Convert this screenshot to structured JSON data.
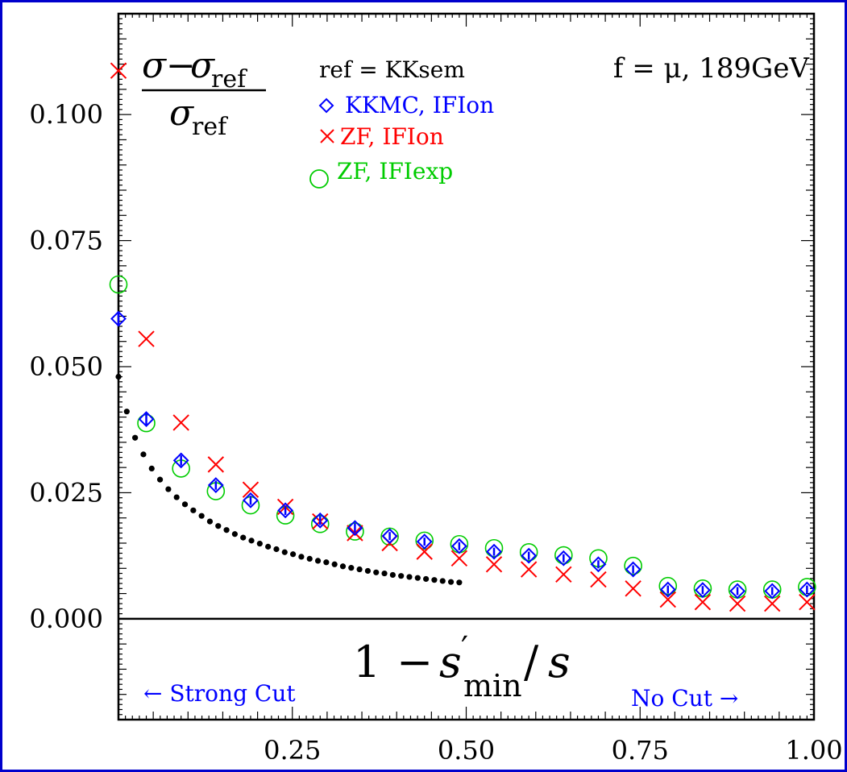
{
  "colors": {
    "frame": "#0000cc",
    "axes": "#000000",
    "kkmc": "#0000ff",
    "zf_on": "#ff0000",
    "zf_exp": "#00cc00",
    "curve": "#000000",
    "cut_labels": "#0000ff"
  },
  "ylabel": {
    "numerator_a": "σ",
    "numerator_minus": "−",
    "numerator_b": "σ",
    "numerator_sub": "ref",
    "denominator": "σ",
    "denominator_sub": "ref"
  },
  "xlabel": {
    "one": "1",
    "minus": "−",
    "s": "s",
    "prime": "′",
    "sub": "min",
    "over": "/",
    "s2": "s"
  },
  "annotations": {
    "top_right": "f = μ, 189GeV",
    "strong_cut": "← Strong Cut",
    "no_cut": "No Cut →"
  },
  "legend": {
    "title": "ref = KKsem",
    "entries": [
      "KKMC, IFIon",
      "ZF, IFIon",
      "ZF, IFIexp"
    ]
  },
  "chart_data": {
    "type": "scatter",
    "title": "",
    "xlim": [
      0,
      1.0
    ],
    "ylim": [
      -0.02,
      0.12
    ],
    "x_ticks": [
      "0.25",
      "0.50",
      "0.75",
      "1.00"
    ],
    "x_tick_values": [
      0.25,
      0.5,
      0.75,
      1.0
    ],
    "y_ticks": [
      "0.000",
      "0.025",
      "0.050",
      "0.075",
      "0.100"
    ],
    "y_tick_values": [
      0.0,
      0.025,
      0.05,
      0.075,
      0.1
    ],
    "grid": false,
    "legend_position": "top-center",
    "series": [
      {
        "name": "KKMC, IFIon",
        "marker": "diamond",
        "x": [
          0.0,
          0.04,
          0.09,
          0.14,
          0.19,
          0.24,
          0.29,
          0.34,
          0.39,
          0.44,
          0.49,
          0.54,
          0.59,
          0.64,
          0.69,
          0.74,
          0.79,
          0.84,
          0.89,
          0.94,
          0.99
        ],
        "y": [
          0.0595,
          0.0396,
          0.0314,
          0.0265,
          0.0235,
          0.0215,
          0.0195,
          0.018,
          0.0164,
          0.0153,
          0.0144,
          0.0133,
          0.0125,
          0.012,
          0.0108,
          0.0098,
          0.0058,
          0.0057,
          0.0055,
          0.0055,
          0.0058
        ],
        "err": [
          0.0012,
          0.0012,
          0.001,
          0.0009,
          0.0009,
          0.0009,
          0.0009,
          0.0009,
          0.0008,
          0.0008,
          0.0008,
          0.0008,
          0.0008,
          0.0008,
          0.0008,
          0.0008,
          0.0008,
          0.0008,
          0.0008,
          0.0008,
          0.0008
        ]
      },
      {
        "name": "ZF, IFIon",
        "marker": "cross",
        "x": [
          0.0,
          0.04,
          0.09,
          0.14,
          0.19,
          0.24,
          0.29,
          0.34,
          0.39,
          0.44,
          0.49,
          0.54,
          0.59,
          0.64,
          0.69,
          0.74,
          0.79,
          0.84,
          0.89,
          0.94,
          0.99
        ],
        "y": [
          0.1087,
          0.0555,
          0.0389,
          0.0306,
          0.0256,
          0.0222,
          0.0193,
          0.017,
          0.015,
          0.0133,
          0.012,
          0.0108,
          0.0098,
          0.0088,
          0.0078,
          0.006,
          0.0038,
          0.0033,
          0.003,
          0.003,
          0.0033
        ]
      },
      {
        "name": "ZF, IFIexp",
        "marker": "circle",
        "x": [
          0.0,
          0.04,
          0.09,
          0.14,
          0.19,
          0.24,
          0.29,
          0.34,
          0.39,
          0.44,
          0.49,
          0.54,
          0.59,
          0.64,
          0.69,
          0.74,
          0.79,
          0.84,
          0.89,
          0.94,
          0.99
        ],
        "y": [
          0.0663,
          0.0388,
          0.0298,
          0.0253,
          0.0225,
          0.0205,
          0.0188,
          0.0173,
          0.0163,
          0.0155,
          0.0148,
          0.014,
          0.0132,
          0.0126,
          0.012,
          0.0105,
          0.0065,
          0.006,
          0.0058,
          0.0058,
          0.0063
        ]
      },
      {
        "name": "",
        "marker": "dots",
        "x_start": 0.0,
        "x_end": 0.49,
        "y": [
          0.048,
          0.0411,
          0.0359,
          0.0326,
          0.0298,
          0.0276,
          0.0257,
          0.0241,
          0.0227,
          0.0215,
          0.0204,
          0.0193,
          0.0184,
          0.0176,
          0.0168,
          0.0161,
          0.0155,
          0.0149,
          0.0143,
          0.0138,
          0.0132,
          0.0128,
          0.0123,
          0.0119,
          0.0115,
          0.0112,
          0.0108,
          0.0104,
          0.0101,
          0.0098,
          0.0095,
          0.0092,
          0.009,
          0.0087,
          0.0085,
          0.0083,
          0.0081,
          0.0079,
          0.0077,
          0.0075,
          0.0073,
          0.0072
        ]
      }
    ]
  }
}
